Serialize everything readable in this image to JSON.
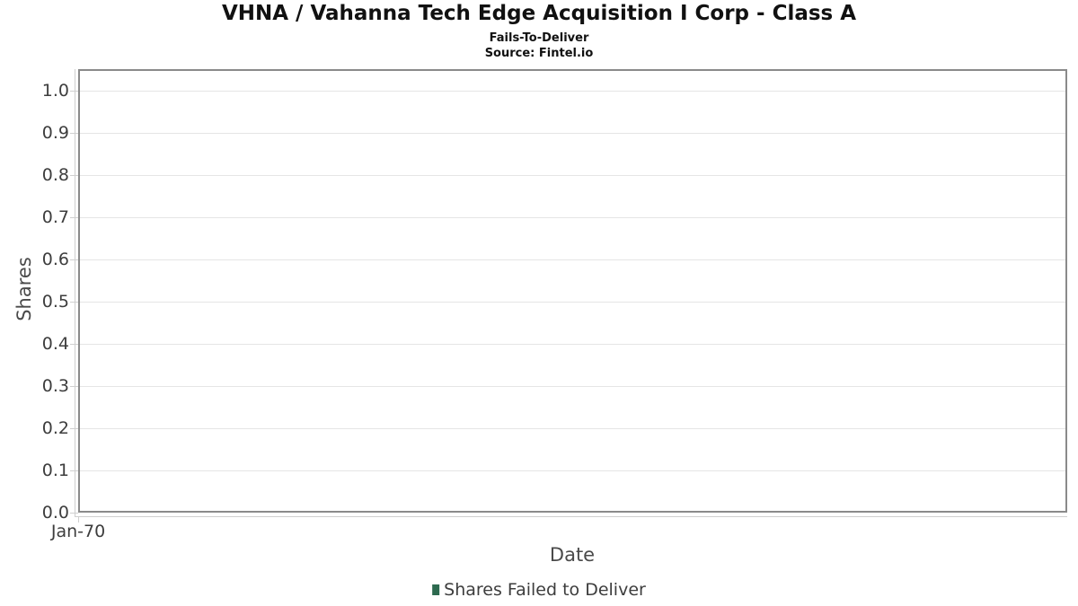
{
  "header": {
    "title": "VHNA / Vahanna Tech Edge Acquisition I Corp - Class A",
    "subtitle": "Fails-To-Deliver",
    "source": "Source: Fintel.io"
  },
  "chart_data": {
    "type": "line",
    "title": "VHNA / Vahanna Tech Edge Acquisition I Corp - Class A",
    "subtitle": "Fails-To-Deliver",
    "source": "Source: Fintel.io",
    "xlabel": "Date",
    "ylabel": "Shares",
    "x_ticks": [
      "Jan-70"
    ],
    "y_ticks": [
      "0.0",
      "0.1",
      "0.2",
      "0.3",
      "0.4",
      "0.5",
      "0.6",
      "0.7",
      "0.8",
      "0.9",
      "1.0"
    ],
    "ylim": [
      0,
      1.05
    ],
    "grid": true,
    "plot_empty": true,
    "legend": {
      "position": "bottom",
      "entries": [
        {
          "label": "Shares Failed to Deliver",
          "color": "#2d6a4f"
        }
      ]
    },
    "series": [
      {
        "name": "Shares Failed to Deliver",
        "x": [],
        "y": []
      }
    ],
    "colors": {
      "plot_border": "#8a8a8a",
      "gridline": "#e5e5e5",
      "axis_line": "#cfcfcf",
      "tick_label": "#3d3d3d",
      "axis_title": "#4a4a4a",
      "title_text": "#111111"
    }
  }
}
